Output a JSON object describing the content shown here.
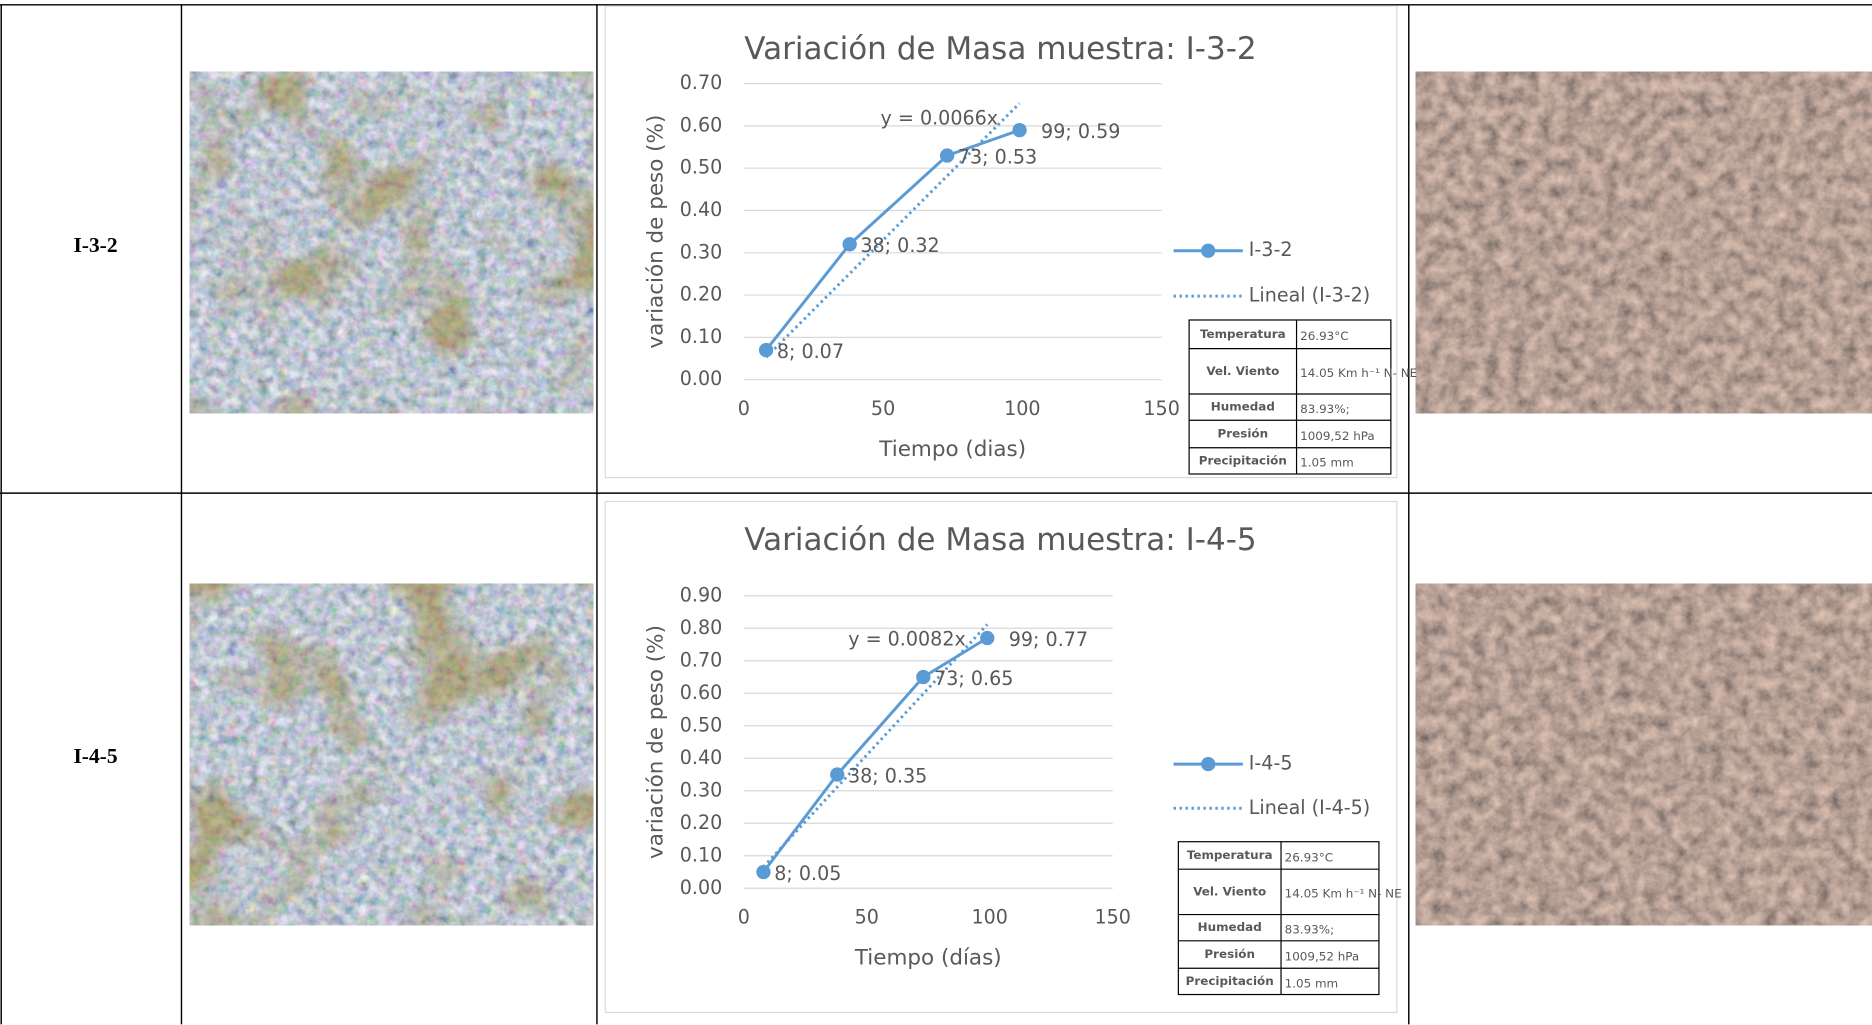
{
  "table": {
    "rows": [
      {
        "label": "I-3-2"
      },
      {
        "label": "I-4-5"
      }
    ]
  },
  "chart_data": [
    {
      "type": "line",
      "title": "Variación de Masa  muestra: I-3-2",
      "x_label": "Tiempo (dias)",
      "y_label": "variación de peso (%)",
      "x": [
        8,
        38,
        73,
        99
      ],
      "series": [
        {
          "name": "I-3-2",
          "color": "#5b9bd5",
          "values": [
            0.07,
            0.32,
            0.53,
            0.59
          ],
          "value_labels": [
            "8; 0.07",
            "38; 0.32",
            "73; 0.53",
            "99; 0.59"
          ]
        }
      ],
      "trendline": {
        "name": "Lineal (I-3-2)",
        "label": "y = 0.0066x",
        "slope": 0.0066
      },
      "xlim": [
        0,
        150
      ],
      "xticks": [
        0,
        50,
        100,
        150
      ],
      "ylim": [
        0,
        0.7
      ],
      "yticks": [
        {
          "value": 0,
          "label": "0.00"
        },
        {
          "value": 0.1,
          "label": "0.10"
        },
        {
          "value": 0.2,
          "label": "0.20"
        },
        {
          "value": 0.3,
          "label": "0.30"
        },
        {
          "value": 0.4,
          "label": "0.40"
        },
        {
          "value": 0.5,
          "label": "0.50"
        },
        {
          "value": 0.6,
          "label": "0.60"
        },
        {
          "value": 0.7,
          "label": "0.70"
        }
      ],
      "grid": true,
      "conditions": [
        [
          "Temperatura",
          "26.93°C"
        ],
        [
          "Vel. Viento",
          "14.05 Km h⁻¹ N- NE"
        ],
        [
          "Humedad",
          "83.93%;"
        ],
        [
          "Presión",
          "1009,52  hPa"
        ],
        [
          "Precipitación",
          "1.05 mm"
        ]
      ]
    },
    {
      "type": "line",
      "title": "Variación de Masa  muestra: I-4-5",
      "x_label": "Tiempo (días)",
      "y_label": "variación de peso (%)",
      "x": [
        8,
        38,
        73,
        99
      ],
      "series": [
        {
          "name": "I-4-5",
          "color": "#5b9bd5",
          "values": [
            0.05,
            0.35,
            0.65,
            0.77
          ],
          "value_labels": [
            "8; 0.05",
            "38; 0.35",
            "73; 0.65",
            "99; 0.77"
          ]
        }
      ],
      "trendline": {
        "name": "Lineal (I-4-5)",
        "label": "y = 0.0082x",
        "slope": 0.0082
      },
      "xlim": [
        0,
        150
      ],
      "xticks": [
        0,
        50,
        100,
        150
      ],
      "ylim": [
        0,
        0.9
      ],
      "yticks": [
        {
          "value": 0,
          "label": "0.00"
        },
        {
          "value": 0.1,
          "label": "0.10"
        },
        {
          "value": 0.2,
          "label": "0.20"
        },
        {
          "value": 0.3,
          "label": "0.30"
        },
        {
          "value": 0.4,
          "label": "0.40"
        },
        {
          "value": 0.5,
          "label": "0.50"
        },
        {
          "value": 0.6,
          "label": "0.60"
        },
        {
          "value": 0.7,
          "label": "0.70"
        },
        {
          "value": 0.8,
          "label": "0.80"
        },
        {
          "value": 0.9,
          "label": "0.90"
        }
      ],
      "grid": true,
      "conditions": [
        [
          "Temperatura",
          "26.93°C"
        ],
        [
          "Vel. Viento",
          "14.05 Km h⁻¹ N- NE"
        ],
        [
          "Humedad",
          "83.93%;"
        ],
        [
          "Presión",
          "1009,52  hPa"
        ],
        [
          "Precipitación",
          "1.05 mm"
        ]
      ]
    }
  ]
}
